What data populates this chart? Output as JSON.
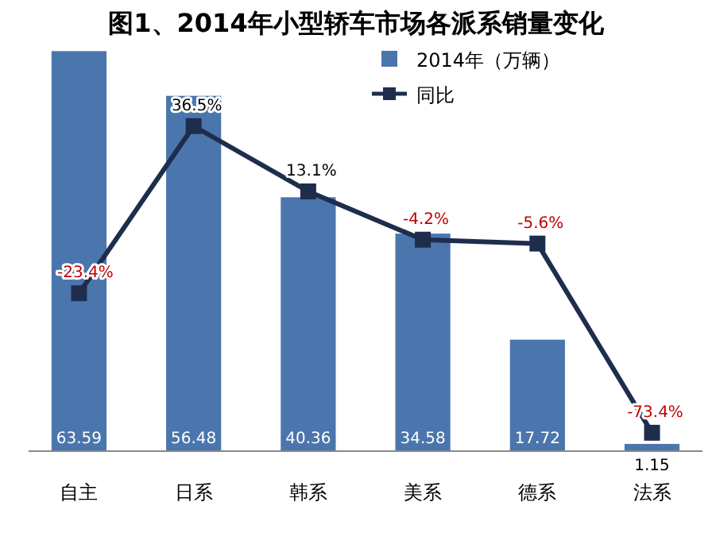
{
  "chart_data": {
    "type": "bar",
    "title": "图1、2014年小型轿车市场各派系销量变化",
    "categories": [
      "自主",
      "日系",
      "韩系",
      "美系",
      "德系",
      "法系"
    ],
    "series": [
      {
        "name": "2014年（万辆）",
        "color": "#4a76ad",
        "values": [
          63.59,
          56.48,
          40.36,
          34.58,
          17.72,
          1.15
        ]
      },
      {
        "name": "同比",
        "type": "line",
        "axis": "y2",
        "color": "#1f2d4d",
        "marker": "square",
        "values": [
          -23.4,
          36.5,
          13.1,
          -4.2,
          -5.6,
          -73.4
        ],
        "value_labels": [
          "-23.4%",
          "36.5%",
          "13.1%",
          "-4.2%",
          "-5.6%",
          "-73.4%"
        ]
      }
    ],
    "data_labels": true,
    "legend": "top right"
  }
}
